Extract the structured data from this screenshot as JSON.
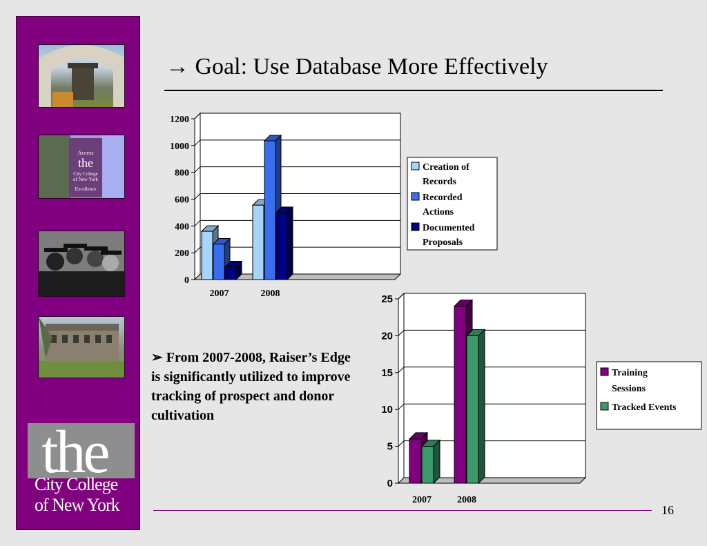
{
  "slide": {
    "title_arrow": "→",
    "title": "Goal: Use Database More Effectively",
    "bullet_marker": "➢",
    "bullet_text": "From 2007-2008, Raiser’s Edge is significantly utilized to improve tracking of prospect and donor cultivation",
    "page_number": "16"
  },
  "logo": {
    "the": "the",
    "line1": "City College",
    "line2": "of New York"
  },
  "sidebar_photos": [
    "campus-arch-photo",
    "city-college-banner-photo",
    "graduates-photo",
    "campus-quad-photo"
  ],
  "colors": {
    "sidebar": "#800080",
    "creation": "#a6d4fb",
    "recorded": "#3a6ef0",
    "documented": "#000080",
    "training": "#800080",
    "tracked": "#3c9a6a"
  },
  "chart_data": [
    {
      "type": "bar",
      "categories": [
        "2007",
        "2008"
      ],
      "series": [
        {
          "name": "Creation of Records",
          "values": [
            360,
            555
          ]
        },
        {
          "name": "Recorded Actions",
          "values": [
            265,
            1035
          ]
        },
        {
          "name": "Documented Proposals",
          "values": [
            95,
            500
          ]
        }
      ],
      "y_ticks": [
        "0",
        "200",
        "400",
        "600",
        "800",
        "1000",
        "1200"
      ],
      "ylim": [
        0,
        1200
      ],
      "grid": true,
      "legend_placement": "right"
    },
    {
      "type": "bar",
      "categories": [
        "2007",
        "2008"
      ],
      "series": [
        {
          "name": "Training Sessions",
          "values": [
            6,
            24
          ]
        },
        {
          "name": "Tracked Events",
          "values": [
            5,
            20
          ]
        }
      ],
      "y_ticks": [
        "0",
        "5",
        "10",
        "15",
        "20",
        "25"
      ],
      "ylim": [
        0,
        25
      ],
      "grid": true,
      "legend_placement": "right"
    }
  ]
}
